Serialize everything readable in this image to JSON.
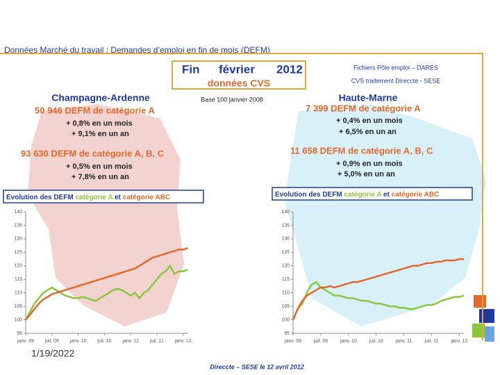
{
  "header": {
    "title": "Données Marché du travail : Demandes d’emploi en fin de mois (DEFM)",
    "month_box": [
      "Fin",
      "février",
      "2012"
    ],
    "cvs": "données CVS",
    "source1": "Fichiers Pôle emploi – DARES",
    "source2": "CVS traitement Direccte - SESE",
    "base": "Base 100 janvier 2008"
  },
  "left_panel": {
    "region": "Champagne-Ardenne",
    "cat_a": "50 946  DEFM de catégorie A",
    "cat_a_month": "+ 0,8% en un mois",
    "cat_a_year": "+ 9,1% en un an",
    "cat_abc": "93 630  DEFM de catégorie A, B, C",
    "cat_abc_month": "+ 0,5% en un mois",
    "cat_abc_year": "+ 7,8% en un an"
  },
  "right_panel": {
    "region": "Haute-Marne",
    "cat_a": "7 399  DEFM de catégorie A",
    "cat_a_month": "+ 0,4% en un mois",
    "cat_a_year": "+ 6,5% en un an",
    "cat_abc": "11 658  DEFM de catégorie A, B, C",
    "cat_abc_month": "+ 0,9% en un mois",
    "cat_abc_year": "+ 5,0% en un an"
  },
  "footer": {
    "date": "1/19/2022",
    "credit": "Direccte – SESE le 12 avril 2012"
  },
  "chart_data": [
    {
      "type": "line",
      "title": "Evolution des DEFM",
      "legend_joiner": "et",
      "categories": [
        "janv. 09",
        null,
        null,
        null,
        null,
        null,
        "juil. 09",
        null,
        null,
        null,
        null,
        null,
        "janv. 10",
        null,
        null,
        null,
        null,
        null,
        "juil. 10",
        null,
        null,
        null,
        null,
        null,
        "janv. 11",
        null,
        null,
        null,
        null,
        null,
        "juil. 11",
        null,
        null,
        null,
        null,
        null,
        "janv. 12",
        null
      ],
      "ylim": [
        95,
        140
      ],
      "yticks": [
        95,
        100,
        105,
        110,
        115,
        120,
        125,
        130,
        135,
        140
      ],
      "series": [
        {
          "name": "catégorie A",
          "color": "#8cc63f",
          "values": [
            100,
            103,
            106,
            108,
            110,
            111,
            112,
            111,
            110,
            109,
            108.5,
            108,
            108,
            108.5,
            108,
            107.5,
            107,
            108,
            109,
            110,
            111,
            111.5,
            111,
            110,
            109,
            110,
            108,
            110,
            111,
            113,
            115,
            117,
            118,
            120,
            117,
            118,
            118,
            118.5
          ]
        },
        {
          "name": "catégorie ABC",
          "color": "#e2682a",
          "values": [
            100,
            102,
            104,
            106,
            107.5,
            108.5,
            109.5,
            110,
            110.5,
            111,
            111.5,
            112,
            112.5,
            113,
            113.5,
            114,
            114.5,
            115,
            115.5,
            116,
            116.5,
            117,
            117.5,
            118,
            118.5,
            119,
            120,
            121,
            122,
            123,
            123.5,
            124,
            124.5,
            125,
            125.5,
            126,
            126,
            126.5
          ]
        }
      ]
    },
    {
      "type": "line",
      "title": "Evolution des DEFM",
      "legend_joiner": "et",
      "categories": [
        "janv. 09",
        null,
        null,
        null,
        null,
        null,
        "juil. 09",
        null,
        null,
        null,
        null,
        null,
        "janv. 10",
        null,
        null,
        null,
        null,
        null,
        "juil. 10",
        null,
        null,
        null,
        null,
        null,
        "janv. 11",
        null,
        null,
        null,
        null,
        null,
        "juil. 11",
        null,
        null,
        null,
        null,
        null,
        "janv. 12",
        null
      ],
      "ylim": [
        95,
        140
      ],
      "yticks": [
        95,
        100,
        105,
        110,
        115,
        120,
        125,
        130,
        135,
        140
      ],
      "series": [
        {
          "name": "catégorie A",
          "color": "#8cc63f",
          "values": [
            100,
            104,
            106,
            110,
            113,
            114,
            112,
            111,
            110,
            109,
            109,
            108.5,
            108,
            108,
            107.5,
            107,
            107,
            106.5,
            106,
            106,
            105.5,
            105,
            105,
            104.5,
            104.5,
            104,
            104,
            104.5,
            105,
            105.5,
            105.5,
            106,
            107,
            107.5,
            108,
            108.5,
            108.5,
            109
          ]
        },
        {
          "name": "catégorie ABC",
          "color": "#e2682a",
          "values": [
            100,
            104,
            107,
            109,
            110,
            111,
            112,
            112,
            112.5,
            112,
            112.5,
            113,
            113.5,
            114,
            114,
            114.5,
            115,
            115.5,
            116,
            116.5,
            117,
            117.5,
            118,
            118.5,
            119,
            119.5,
            120,
            120,
            120.5,
            121,
            121,
            121.5,
            121.5,
            122,
            122,
            122,
            122.5,
            122.5
          ]
        }
      ]
    }
  ]
}
